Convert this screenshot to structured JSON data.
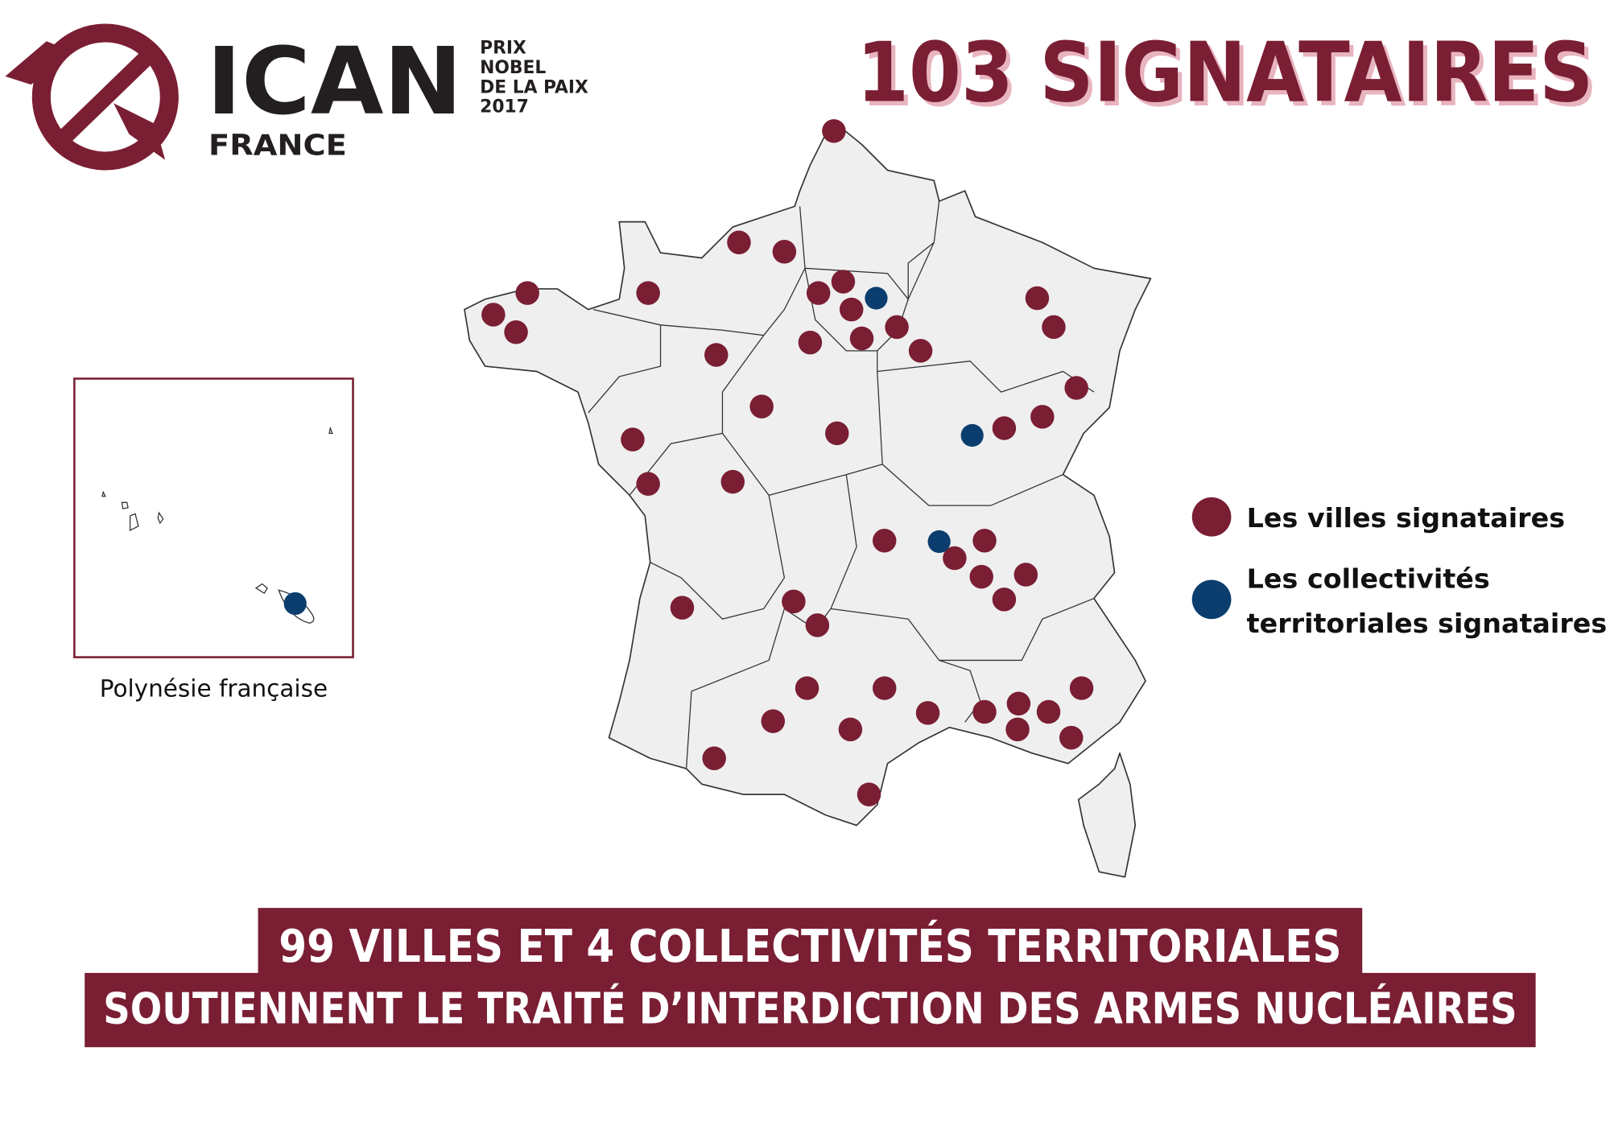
{
  "header": {
    "logo_title": "ICAN",
    "logo_subtitle": "FRANCE",
    "prize_lines": [
      "PRIX",
      "NOBEL",
      "DE LA PAIX",
      "2017"
    ],
    "title": "103 SIGNATAIRES"
  },
  "legend": {
    "items": [
      {
        "label_lines": [
          "Les villes signataires"
        ],
        "color": "#7a1e33"
      },
      {
        "label_lines": [
          "Les collectivités",
          "territoriales signataires"
        ],
        "color": "#0b3d6e"
      }
    ]
  },
  "inset": {
    "label": "Polynésie française"
  },
  "banner": {
    "lines": [
      "99 VILLES ET 4 COLLECTIVITÉS TERRITORIALES",
      "SOUTIENNENT LE TRAITÉ D’INTERDICTION DES ARMES NUCLÉAIRES"
    ]
  }
}
